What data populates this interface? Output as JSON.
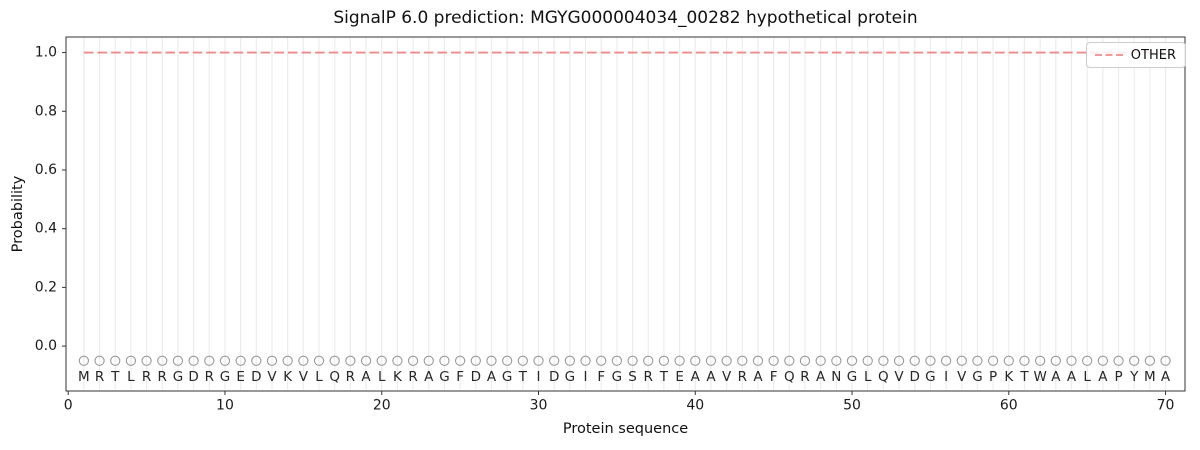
{
  "chart_data": {
    "type": "line",
    "title": "SignalP 6.0 prediction: MGYG000004034_00282 hypothetical protein",
    "xlabel": "Protein sequence",
    "ylabel": "Probability",
    "xlim": [
      -0.14,
      71.24
    ],
    "ylim": [
      -0.153,
      1.053
    ],
    "xticks": [
      0,
      10,
      20,
      30,
      40,
      50,
      60,
      70
    ],
    "yticks": [
      "0.0",
      "0.2",
      "0.4",
      "0.6",
      "0.8",
      "1.0"
    ],
    "grid": "vertical-line-per-residue",
    "legend": {
      "position": "upper-right",
      "entries": [
        {
          "label": "OTHER",
          "color": "#ef8a8a",
          "linestyle": "dashed"
        }
      ]
    },
    "series": [
      {
        "name": "OTHER",
        "color": "#ef8a8a",
        "linestyle": "dashed",
        "x_start": 1,
        "values": [
          1.0,
          1.0,
          1.0,
          1.0,
          1.0,
          1.0,
          1.0,
          1.0,
          1.0,
          1.0,
          1.0,
          1.0,
          1.0,
          1.0,
          1.0,
          1.0,
          1.0,
          1.0,
          1.0,
          1.0,
          1.0,
          1.0,
          1.0,
          1.0,
          1.0,
          1.0,
          1.0,
          1.0,
          1.0,
          1.0,
          1.0,
          1.0,
          1.0,
          1.0,
          1.0,
          1.0,
          1.0,
          1.0,
          1.0,
          1.0,
          1.0,
          1.0,
          1.0,
          1.0,
          1.0,
          1.0,
          1.0,
          1.0,
          1.0,
          1.0,
          1.0,
          1.0,
          1.0,
          1.0,
          1.0,
          1.0,
          1.0,
          1.0,
          1.0,
          1.0,
          1.0,
          1.0,
          1.0,
          1.0,
          1.0,
          1.0,
          1.0,
          1.0,
          1.0,
          1.0
        ]
      }
    ],
    "sequence": [
      "M",
      "R",
      "T",
      "L",
      "R",
      "R",
      "G",
      "D",
      "R",
      "G",
      "E",
      "D",
      "V",
      "K",
      "V",
      "L",
      "Q",
      "R",
      "A",
      "L",
      "K",
      "R",
      "A",
      "G",
      "F",
      "D",
      "A",
      "G",
      "T",
      "I",
      "D",
      "G",
      "I",
      "F",
      "G",
      "S",
      "R",
      "T",
      "E",
      "A",
      "A",
      "V",
      "R",
      "A",
      "F",
      "Q",
      "R",
      "A",
      "N",
      "G",
      "L",
      "Q",
      "V",
      "D",
      "G",
      "I",
      "V",
      "G",
      "P",
      "K",
      "T",
      "W",
      "A",
      "A",
      "L",
      "A",
      "P",
      "Y",
      "M",
      "A"
    ],
    "sequence_text_y": -0.105,
    "marker_y": -0.05,
    "colors": {
      "line": "#ef8a8a",
      "grid": "#ececec",
      "marker": "#999999",
      "sequence_text": "#262626",
      "tick_text": "#1a1a1a",
      "spine": "#333333",
      "legend_border": "#cccccc"
    }
  }
}
